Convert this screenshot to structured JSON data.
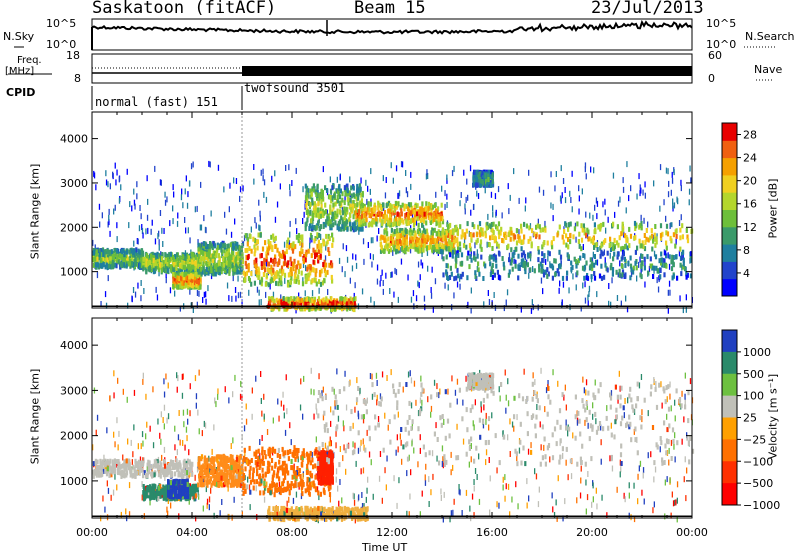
{
  "header": {
    "station": "Saskatoon (fitACF)",
    "beam": "Beam 15",
    "date": "23/Jul/2013"
  },
  "top_panels": {
    "nsky_label": "N.Sky",
    "nsearch_label": "N.Search",
    "freq_label_1": "Freq.",
    "freq_label_2": "[MHz]",
    "nave_label": "Nave",
    "cpid_label": "CPID",
    "nsky_ticks": [
      "10^5",
      "10^0"
    ],
    "nsearch_ticks": [
      "10^5",
      "10^0"
    ],
    "freq_ticks": [
      "18",
      "8"
    ],
    "nave_ticks": [
      "60",
      "0"
    ],
    "modes": [
      {
        "name": "normal (fast) 151",
        "start_hour": 0,
        "end_hour": 6
      },
      {
        "name": "twofsound 3501",
        "start_hour": 6,
        "end_hour": 24
      }
    ]
  },
  "chart_data": [
    {
      "type": "heatmap",
      "parameter": "power",
      "xlabel": "",
      "ylabel": "Slant Range [km]",
      "xlim": [
        0,
        24
      ],
      "ylim": [
        180,
        4600
      ],
      "yticks": [
        "1000",
        "2000",
        "3000",
        "4000"
      ],
      "colorbar": {
        "label": "Power [dB]",
        "ticks": [
          "28",
          "24",
          "20",
          "16",
          "12",
          "8",
          "4"
        ],
        "range": [
          0,
          30
        ],
        "colors": [
          "#0000ff",
          "#2244cc",
          "#1f7f9f",
          "#3a9a6a",
          "#6dbf3a",
          "#b4d62c",
          "#f0d020",
          "#f5a000",
          "#f06010",
          "#e80000"
        ]
      },
      "regions": [
        {
          "t0": 0.0,
          "t1": 2.0,
          "r0": 1150,
          "r1": 1550,
          "level": 0.45
        },
        {
          "t0": 2.0,
          "t1": 4.2,
          "r0": 1050,
          "r1": 1450,
          "level": 0.55
        },
        {
          "t0": 3.2,
          "t1": 4.3,
          "r0": 700,
          "r1": 1000,
          "level": 0.8
        },
        {
          "t0": 4.2,
          "t1": 6.0,
          "r0": 1000,
          "r1": 1700,
          "level": 0.5
        },
        {
          "t0": 6.0,
          "t1": 9.6,
          "r0": 750,
          "r1": 1900,
          "level": 0.8
        },
        {
          "t0": 7.0,
          "t1": 10.5,
          "r0": 200,
          "r1": 450,
          "level": 0.85
        },
        {
          "t0": 8.5,
          "t1": 10.8,
          "r0": 2000,
          "r1": 3000,
          "level": 0.5
        },
        {
          "t0": 10.5,
          "t1": 14.0,
          "r0": 2100,
          "r1": 2600,
          "level": 0.75
        },
        {
          "t0": 11.5,
          "t1": 14.5,
          "r0": 1500,
          "r1": 2000,
          "level": 0.7
        },
        {
          "t0": 14.0,
          "t1": 24.0,
          "r0": 1550,
          "r1": 2150,
          "level": 0.65
        },
        {
          "t0": 14.0,
          "t1": 24.0,
          "r0": 900,
          "r1": 1500,
          "level": 0.3
        },
        {
          "t0": 15.2,
          "t1": 16.0,
          "r0": 3000,
          "r1": 3300,
          "level": 0.3
        }
      ]
    },
    {
      "type": "heatmap",
      "parameter": "velocity",
      "xlabel": "Time UT",
      "ylabel": "Slant Range [km]",
      "xlim": [
        0,
        24
      ],
      "ylim": [
        180,
        4600
      ],
      "xticks": [
        "00:00",
        "04:00",
        "08:00",
        "12:00",
        "16:00",
        "20:00",
        "00:00"
      ],
      "yticks": [
        "1000",
        "2000",
        "3000",
        "4000"
      ],
      "colorbar": {
        "label": "Velocity [m s⁻¹]",
        "ticks": [
          "1000",
          "500",
          "100",
          "25",
          "−25",
          "−100",
          "−500",
          "−1000"
        ],
        "colors": [
          "#2040c0",
          "#2a8a6a",
          "#6dc040",
          "#c0c0b8",
          "#ffa000",
          "#ff7000",
          "#ff3000",
          "#ff0000"
        ]
      },
      "regions": [
        {
          "t0": 0.0,
          "t1": 4.0,
          "r0": 1150,
          "r1": 1500,
          "color": "#c0c0b8"
        },
        {
          "t0": 2.0,
          "t1": 4.2,
          "r0": 650,
          "r1": 950,
          "color": "#2a8a6a"
        },
        {
          "t0": 3.0,
          "t1": 3.8,
          "r0": 700,
          "r1": 1050,
          "color": "#2040c0"
        },
        {
          "t0": 4.2,
          "t1": 6.0,
          "r0": 950,
          "r1": 1600,
          "color": "#ff8c1a"
        },
        {
          "t0": 6.0,
          "t1": 9.5,
          "r0": 750,
          "r1": 1800,
          "color": "#ff7000"
        },
        {
          "t0": 9.0,
          "t1": 9.6,
          "r0": 1000,
          "r1": 1700,
          "color": "#ff2000"
        },
        {
          "t0": 7.0,
          "t1": 11.0,
          "r0": 200,
          "r1": 450,
          "color": "#f0b040"
        },
        {
          "t0": 9.0,
          "t1": 24.0,
          "r0": 1400,
          "r1": 3200,
          "color": "#c0c0b8"
        },
        {
          "t0": 15.0,
          "t1": 16.0,
          "r0": 3100,
          "r1": 3400,
          "color": "#c0c0b8"
        }
      ]
    }
  ]
}
